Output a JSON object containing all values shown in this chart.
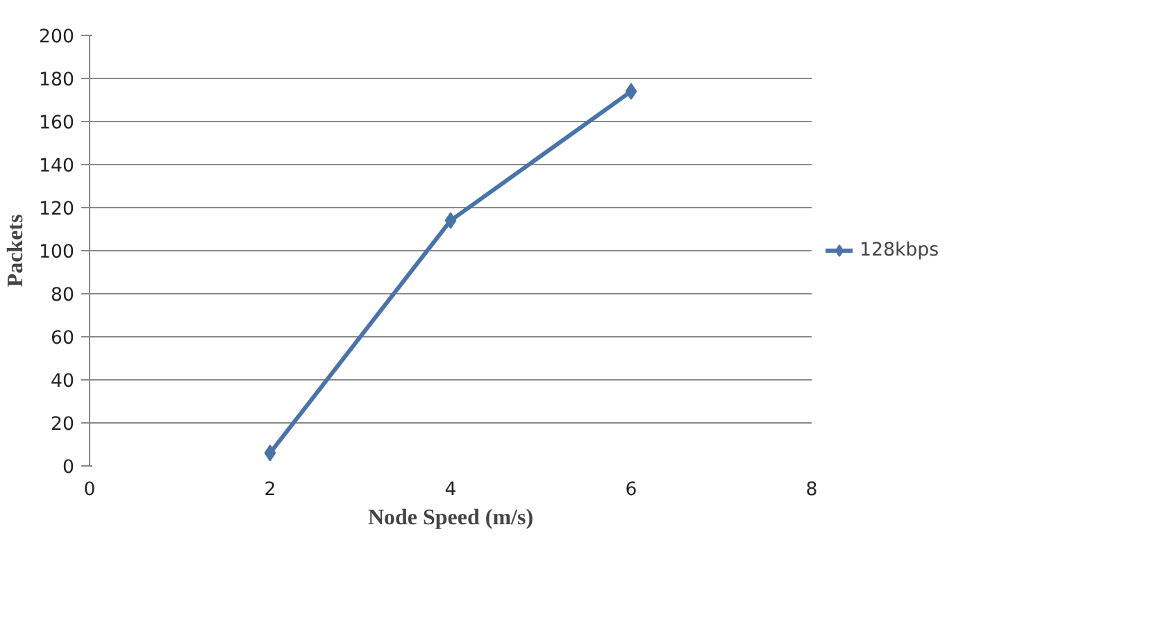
{
  "chart_data": {
    "type": "line",
    "xlabel": "Node Speed (m/s)",
    "ylabel": "Packets",
    "x": [
      2,
      4,
      6
    ],
    "series": [
      {
        "name": "128kbps",
        "color": "#4a73a8",
        "values": [
          6,
          114,
          174
        ]
      }
    ],
    "xlim": [
      0,
      8
    ],
    "xticks": [
      0,
      2,
      4,
      6,
      8
    ],
    "ylim": [
      0,
      200
    ],
    "yticks": [
      0,
      20,
      40,
      60,
      80,
      100,
      120,
      140,
      160,
      180,
      200
    ],
    "grid": "y",
    "legend": "right",
    "marker": "diamond",
    "line_style": "solid"
  }
}
